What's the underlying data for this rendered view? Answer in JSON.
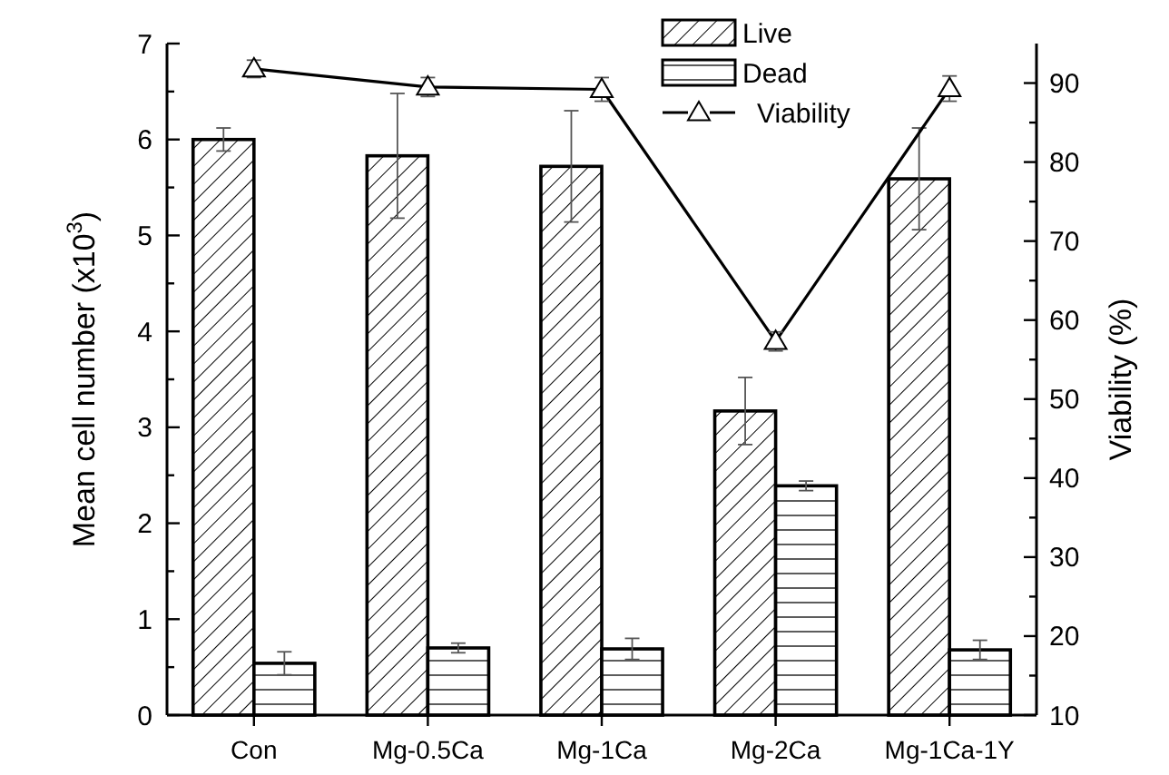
{
  "chart_data": {
    "type": "bar",
    "categories": [
      "Con",
      "Mg-0.5Ca",
      "Mg-1Ca",
      "Mg-2Ca",
      "Mg-1Ca-1Y"
    ],
    "ylabel": "Mean cell number (x10$^{3}$)",
    "y2label": "Viability (%)",
    "ylim": [
      0,
      7
    ],
    "yticks": [
      0,
      {
        "value": 0.5,
        "label": null
      },
      1,
      {
        "value": 1.5,
        "label": null
      },
      2,
      {
        "value": 2.5,
        "label": null
      },
      3,
      {
        "value": 3.5,
        "label": null
      },
      4,
      {
        "value": 4.5,
        "label": null
      },
      5,
      {
        "value": 5.5,
        "label": null
      },
      6,
      {
        "value": 6.5,
        "label": null
      },
      7
    ],
    "y2lim": [
      10,
      95
    ],
    "y2ticks": [
      10,
      {
        "value": 15,
        "label": null
      },
      20,
      {
        "value": 25,
        "label": null
      },
      30,
      {
        "value": 35,
        "label": null
      },
      40,
      {
        "value": 45,
        "label": null
      },
      50,
      {
        "value": 55,
        "label": null
      },
      60,
      {
        "value": 65,
        "label": null
      },
      70,
      {
        "value": 75,
        "label": null
      },
      80,
      {
        "value": 85,
        "label": null
      },
      90
    ],
    "legend": "top right",
    "grid": false,
    "series": [
      {
        "name": "Live",
        "color": "#000000",
        "values": [
          6.0,
          5.83,
          5.72,
          3.17,
          5.59
        ],
        "errors": [
          0.12,
          0.65,
          0.58,
          0.35,
          0.53
        ]
      },
      {
        "name": "Dead",
        "color": "#000000",
        "values": [
          0.54,
          0.7,
          0.69,
          2.39,
          0.68
        ],
        "errors": [
          0.12,
          0.05,
          0.11,
          0.05,
          0.1
        ]
      },
      {
        "name": "Viability",
        "type": "line",
        "axis": "y2",
        "color": "#000000",
        "marker": "triangle",
        "line_style": "solid",
        "values": [
          91.8,
          89.5,
          89.2,
          57.3,
          89.3
        ],
        "errors": [
          1.1,
          1.2,
          1.5,
          1.2,
          1.6
        ]
      }
    ]
  }
}
